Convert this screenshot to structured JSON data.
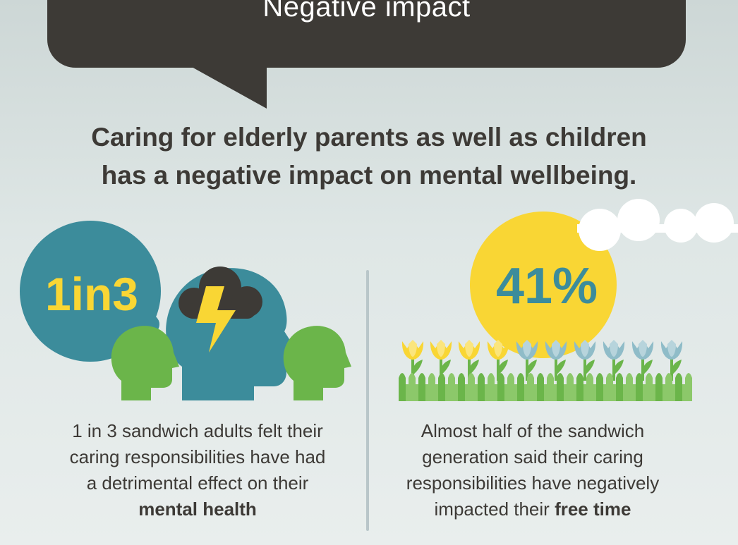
{
  "banner": {
    "title": "Negative impact"
  },
  "headline": {
    "line1": "Caring for elderly parents as well as children",
    "line2": "has a negative impact on mental wellbeing."
  },
  "left_stat": {
    "value": "1in3",
    "caption_lines": [
      "1 in 3 sandwich adults felt their",
      "caring responsibilities have had",
      "a detrimental effect on their"
    ],
    "caption_bold": "mental health"
  },
  "right_stat": {
    "value": "41%",
    "caption_lines": [
      "Almost half of the sandwich",
      "generation said their caring",
      "responsibilities have negatively"
    ],
    "caption_lead": "impacted their ",
    "caption_bold": "free time"
  },
  "colors": {
    "dark": "#3d3a36",
    "teal": "#3c8c9b",
    "yellow": "#f9d634",
    "green": "#6bb54a",
    "pale_teal": "#8fbcc8"
  },
  "icons": [
    "speech-bubble",
    "thought-bubble",
    "head-icon",
    "storm-cloud-icon",
    "lightning-icon",
    "sun-icon",
    "cloud-icon",
    "tulip-icon",
    "grass"
  ]
}
